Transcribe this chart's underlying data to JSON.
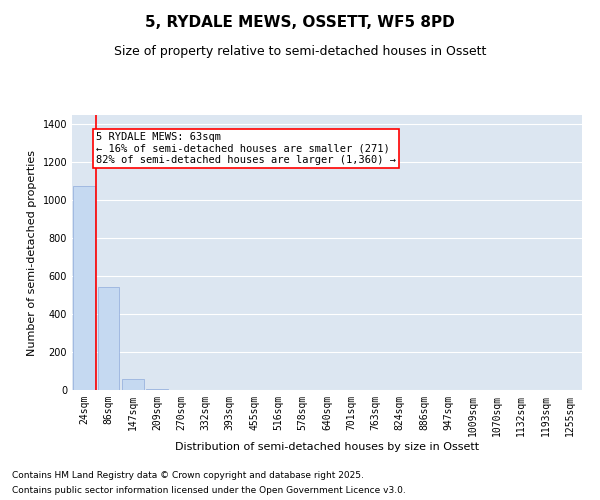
{
  "title": "5, RYDALE MEWS, OSSETT, WF5 8PD",
  "subtitle": "Size of property relative to semi-detached houses in Ossett",
  "xlabel": "Distribution of semi-detached houses by size in Ossett",
  "ylabel": "Number of semi-detached properties",
  "categories": [
    "24sqm",
    "86sqm",
    "147sqm",
    "209sqm",
    "270sqm",
    "332sqm",
    "393sqm",
    "455sqm",
    "516sqm",
    "578sqm",
    "640sqm",
    "701sqm",
    "763sqm",
    "824sqm",
    "886sqm",
    "947sqm",
    "1009sqm",
    "1070sqm",
    "1132sqm",
    "1193sqm",
    "1255sqm"
  ],
  "values": [
    1075,
    545,
    60,
    5,
    2,
    1,
    0,
    0,
    0,
    0,
    0,
    0,
    0,
    0,
    0,
    0,
    0,
    0,
    0,
    0,
    0
  ],
  "bar_color": "#c5d9f1",
  "bar_edge_color": "#8eaadb",
  "red_line_x": 0.5,
  "annotation_title": "5 RYDALE MEWS: 63sqm",
  "annotation_line1": "← 16% of semi-detached houses are smaller (271)",
  "annotation_line2": "82% of semi-detached houses are larger (1,360) →",
  "ylim": [
    0,
    1450
  ],
  "yticks": [
    0,
    200,
    400,
    600,
    800,
    1000,
    1200,
    1400
  ],
  "background_color": "#dce6f1",
  "footer_line1": "Contains HM Land Registry data © Crown copyright and database right 2025.",
  "footer_line2": "Contains public sector information licensed under the Open Government Licence v3.0.",
  "title_fontsize": 11,
  "subtitle_fontsize": 9,
  "axis_label_fontsize": 8,
  "tick_fontsize": 7,
  "annotation_fontsize": 7.5,
  "footer_fontsize": 6.5
}
